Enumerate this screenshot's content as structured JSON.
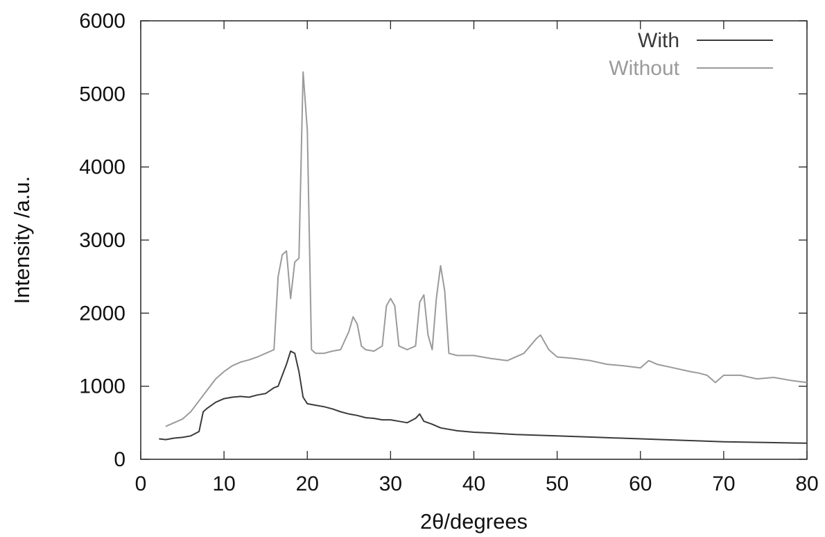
{
  "chart_data": {
    "type": "line",
    "title": "",
    "xlabel": "2θ/degrees",
    "ylabel": "Intensity /a.u.",
    "xlim": [
      0,
      80
    ],
    "ylim": [
      0,
      6000
    ],
    "xticks": [
      0,
      10,
      20,
      30,
      40,
      50,
      60,
      70,
      80
    ],
    "yticks": [
      0,
      1000,
      2000,
      3000,
      4000,
      5000,
      6000
    ],
    "grid": false,
    "legend_position": "top-right",
    "series": [
      {
        "name": "With",
        "color": "#3a3a3a",
        "x": [
          2.2,
          3,
          4,
          5,
          6,
          7,
          7.5,
          8,
          9,
          10,
          11,
          12,
          13,
          14,
          15,
          16,
          16.5,
          17,
          17.5,
          18,
          18.5,
          19,
          19.5,
          20,
          21,
          22,
          23,
          24,
          25,
          26,
          27,
          28,
          29,
          30,
          31,
          32,
          33,
          33.5,
          34,
          35,
          36,
          37,
          38,
          40,
          42,
          45,
          50,
          55,
          60,
          65,
          70,
          75,
          80
        ],
        "y": [
          280,
          270,
          290,
          300,
          320,
          380,
          650,
          700,
          780,
          830,
          850,
          860,
          850,
          880,
          900,
          980,
          1000,
          1150,
          1300,
          1480,
          1450,
          1200,
          850,
          760,
          740,
          720,
          690,
          650,
          620,
          600,
          570,
          560,
          540,
          540,
          520,
          500,
          560,
          620,
          520,
          480,
          430,
          410,
          390,
          370,
          360,
          340,
          320,
          300,
          280,
          260,
          240,
          230,
          220
        ]
      },
      {
        "name": "Without",
        "color": "#9a9a9a",
        "x": [
          3,
          4,
          5,
          6,
          7,
          8,
          9,
          10,
          11,
          12,
          13,
          14,
          15,
          16,
          16.5,
          17,
          17.5,
          18,
          18.5,
          19,
          19.5,
          20,
          20.5,
          21,
          22,
          23,
          24,
          25,
          25.5,
          26,
          26.5,
          27,
          28,
          29,
          29.5,
          30,
          30.5,
          31,
          32,
          33,
          33.5,
          34,
          34.5,
          35,
          35.5,
          36,
          36.5,
          37,
          38,
          40,
          42,
          44,
          46,
          47.5,
          48,
          49,
          50,
          52,
          54,
          56,
          58,
          60,
          61,
          62,
          64,
          66,
          67,
          68,
          69,
          70,
          72,
          74,
          76,
          78,
          80
        ],
        "y": [
          450,
          500,
          550,
          650,
          800,
          950,
          1100,
          1200,
          1280,
          1330,
          1360,
          1400,
          1450,
          1500,
          2500,
          2800,
          2850,
          2200,
          2700,
          2750,
          5300,
          4500,
          1500,
          1450,
          1450,
          1480,
          1500,
          1750,
          1950,
          1850,
          1550,
          1500,
          1480,
          1550,
          2100,
          2200,
          2100,
          1550,
          1500,
          1550,
          2150,
          2250,
          1700,
          1500,
          2200,
          2650,
          2300,
          1450,
          1420,
          1420,
          1380,
          1350,
          1450,
          1650,
          1700,
          1500,
          1400,
          1380,
          1350,
          1300,
          1280,
          1250,
          1350,
          1300,
          1250,
          1200,
          1180,
          1150,
          1050,
          1150,
          1150,
          1100,
          1120,
          1080,
          1050
        ]
      }
    ]
  }
}
